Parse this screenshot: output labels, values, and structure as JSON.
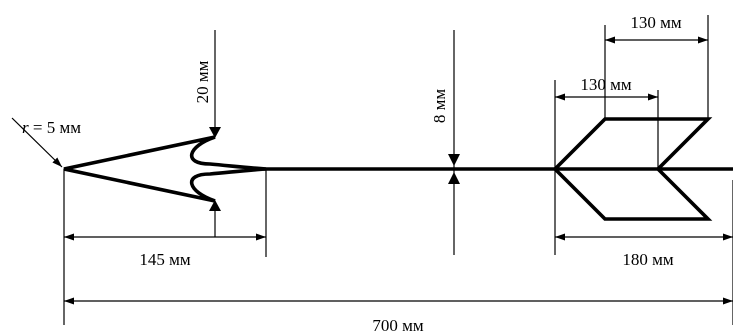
{
  "labels": {
    "radius_var": "r",
    "radius_rest": " = 5 мм",
    "tip_height": "20 мм",
    "shaft_thickness": "8 мм",
    "feather_outer": "130 мм",
    "feather_inner": "130 мм",
    "tip_length": "145 мм",
    "feather_length": "180 мм",
    "total_length": "700 мм"
  }
}
